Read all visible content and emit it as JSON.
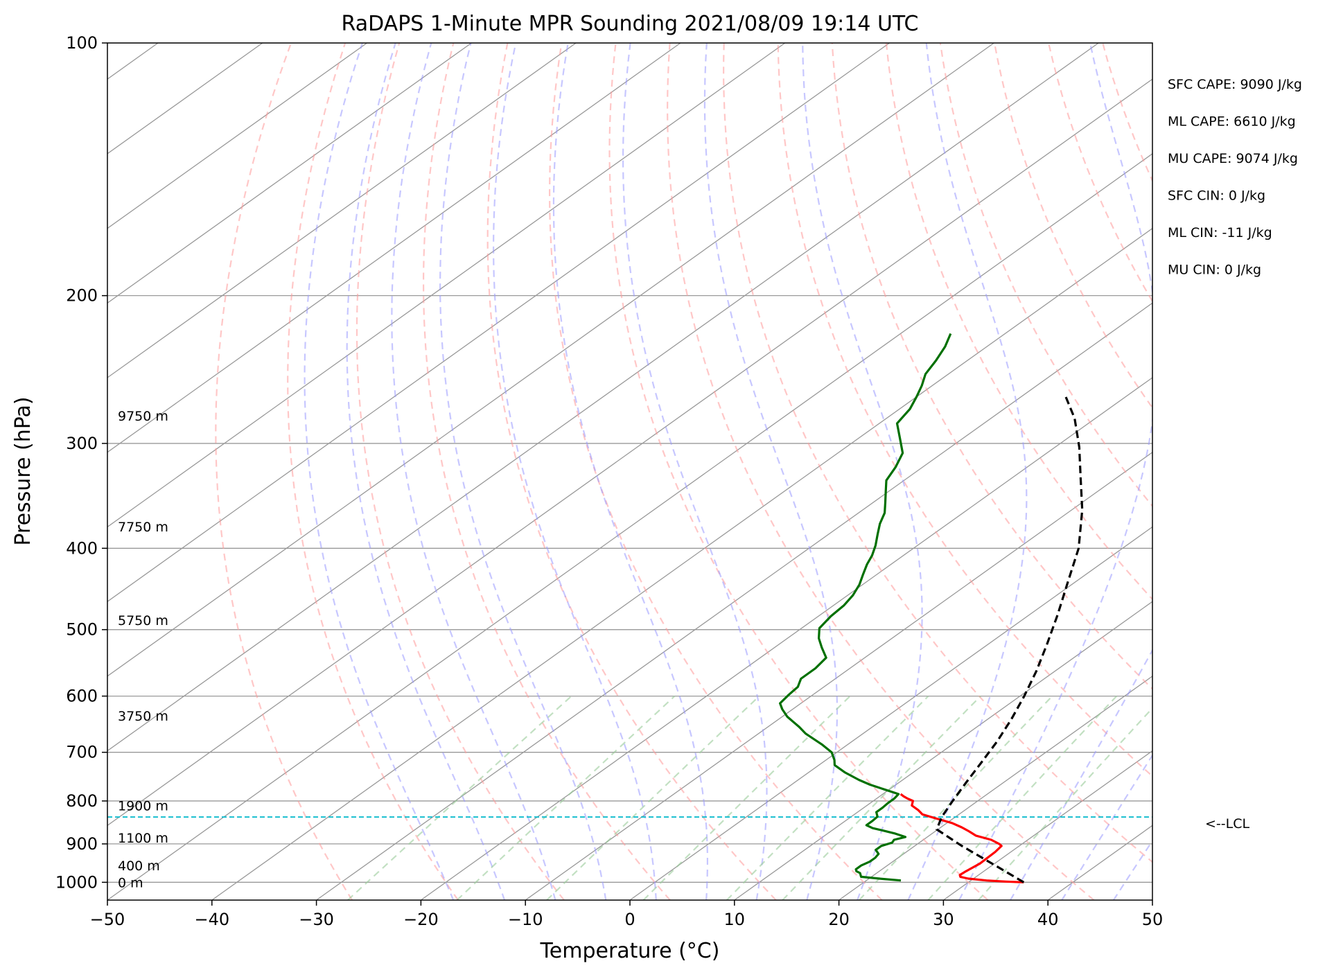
{
  "chart_data": {
    "type": "line",
    "diagram": "skew-t log-p",
    "title": "RaDAPS 1-Minute MPR Sounding 2021/08/09 19:14 UTC",
    "xlabel": "Temperature (°C)",
    "ylabel": "Pressure (hPa)",
    "xlim": [
      -50,
      50
    ],
    "ylim": [
      1050,
      100
    ],
    "y_scale": "log",
    "grid": true,
    "x_ticks": [
      -50,
      -40,
      -30,
      -20,
      -10,
      0,
      10,
      20,
      30,
      40,
      50
    ],
    "x_tick_labels": [
      "−50",
      "−40",
      "−30",
      "−20",
      "−10",
      "0",
      "10",
      "20",
      "30",
      "40",
      "50"
    ],
    "y_ticks": [
      1000,
      900,
      800,
      700,
      600,
      500,
      400,
      300,
      200,
      100
    ],
    "y_tick_labels": [
      "1000",
      "900",
      "800",
      "700",
      "600",
      "500",
      "400",
      "300",
      "200",
      "100"
    ],
    "colors": {
      "temperature": "#ff0000",
      "dewpoint": "#007000",
      "parcel": "#000000",
      "lcl": "#17becf",
      "isotherm": "#999999",
      "dry_adiabat": "#ff9999",
      "moist_adiabat": "#9999ff",
      "mixing_ratio": "#99cc99"
    },
    "series": [
      {
        "key": "temperature",
        "points": [
          [
            35.3,
            1000
          ],
          [
            33.5,
            998
          ],
          [
            31.5,
            995
          ],
          [
            29.5,
            990
          ],
          [
            28.5,
            985
          ],
          [
            28.2,
            980
          ],
          [
            28.3,
            970
          ],
          [
            28.6,
            950
          ],
          [
            28.5,
            920
          ],
          [
            28.3,
            905
          ],
          [
            27.8,
            900
          ],
          [
            26.5,
            890
          ],
          [
            24.5,
            880
          ],
          [
            23.3,
            870
          ],
          [
            22.0,
            860
          ],
          [
            20.5,
            850
          ],
          [
            18.5,
            840
          ],
          [
            16.5,
            830
          ],
          [
            15.5,
            820
          ],
          [
            14.3,
            810
          ],
          [
            13.8,
            800
          ],
          [
            13.0,
            795
          ],
          [
            12.3,
            790
          ],
          [
            11.7,
            785
          ]
        ]
      },
      {
        "key": "dewpoint",
        "points": [
          [
            23.3,
            995
          ],
          [
            21.0,
            990
          ],
          [
            19.0,
            985
          ],
          [
            18.4,
            975
          ],
          [
            17.8,
            970
          ],
          [
            17.5,
            965
          ],
          [
            17.5,
            955
          ],
          [
            17.8,
            945
          ],
          [
            17.8,
            935
          ],
          [
            17.6,
            925
          ],
          [
            16.8,
            915
          ],
          [
            16.8,
            905
          ],
          [
            17.4,
            897
          ],
          [
            17.2,
            890
          ],
          [
            17.9,
            883
          ],
          [
            16.5,
            875
          ],
          [
            15.0,
            868
          ],
          [
            13.6,
            862
          ],
          [
            12.6,
            855
          ],
          [
            12.6,
            845
          ],
          [
            12.5,
            835
          ],
          [
            11.8,
            825
          ],
          [
            11.8,
            815
          ],
          [
            11.7,
            805
          ],
          [
            11.7,
            795
          ],
          [
            11.5,
            785
          ],
          [
            9.5,
            775
          ],
          [
            7.5,
            765
          ],
          [
            5.8,
            755
          ],
          [
            3.5,
            740
          ],
          [
            1.5,
            725
          ],
          [
            0.8,
            715
          ],
          [
            -0.5,
            700
          ],
          [
            -2.5,
            685
          ],
          [
            -5.5,
            665
          ],
          [
            -7.0,
            653
          ],
          [
            -9.5,
            635
          ],
          [
            -11.0,
            622
          ],
          [
            -12.0,
            612
          ],
          [
            -12.3,
            598
          ],
          [
            -12.5,
            585
          ],
          [
            -13.3,
            572
          ],
          [
            -13.3,
            556
          ],
          [
            -13.7,
            540
          ],
          [
            -15.5,
            525
          ],
          [
            -17.0,
            512
          ],
          [
            -18.3,
            498
          ],
          [
            -18.8,
            482
          ],
          [
            -19.0,
            468
          ],
          [
            -19.5,
            455
          ],
          [
            -20.3,
            442
          ],
          [
            -21.3,
            430
          ],
          [
            -22.3,
            418
          ],
          [
            -23.0,
            408
          ],
          [
            -24.0,
            397
          ],
          [
            -25.3,
            385
          ],
          [
            -26.5,
            374
          ],
          [
            -27.5,
            363
          ],
          [
            -28.8,
            353
          ],
          [
            -30.3,
            342
          ],
          [
            -31.7,
            332
          ],
          [
            -32.6,
            320
          ],
          [
            -33.8,
            308
          ],
          [
            -36.0,
            296
          ],
          [
            -38.3,
            284
          ],
          [
            -39.0,
            273
          ],
          [
            -40.0,
            264
          ],
          [
            -41.0,
            256
          ],
          [
            -42.2,
            248
          ],
          [
            -43.0,
            239
          ],
          [
            -44.0,
            230
          ],
          [
            -45.2,
            222
          ]
        ]
      },
      {
        "key": "parcel",
        "points": [
          [
            35.3,
            1000
          ],
          [
            30.0,
            952
          ],
          [
            24.5,
            905
          ],
          [
            19.9,
            865
          ],
          [
            18.7,
            836
          ],
          [
            17.6,
            800
          ],
          [
            16.4,
            760
          ],
          [
            15.2,
            720
          ],
          [
            13.9,
            680
          ],
          [
            12.3,
            640
          ],
          [
            10.4,
            600
          ],
          [
            8.2,
            560
          ],
          [
            5.6,
            520
          ],
          [
            2.7,
            480
          ],
          [
            -0.6,
            440
          ],
          [
            -4.2,
            400
          ],
          [
            -9.0,
            360
          ],
          [
            -13.4,
            330
          ],
          [
            -17.7,
            303
          ],
          [
            -22.0,
            280
          ],
          [
            -26.2,
            262
          ]
        ]
      }
    ],
    "lcl": {
      "pressure": 836,
      "label": "<--LCL"
    },
    "height_labels": [
      {
        "text": "0 m",
        "pressure": 1000
      },
      {
        "text": "400 m",
        "pressure": 955
      },
      {
        "text": "1100 m",
        "pressure": 885
      },
      {
        "text": "1900 m",
        "pressure": 810
      },
      {
        "text": "3750 m",
        "pressure": 633
      },
      {
        "text": "5750 m",
        "pressure": 487
      },
      {
        "text": "7750 m",
        "pressure": 377
      },
      {
        "text": "9750 m",
        "pressure": 278
      }
    ],
    "annotations": [
      "SFC CAPE: 9090 J/kg",
      "ML CAPE: 6610 J/kg",
      "MU CAPE: 9074 J/kg",
      "SFC CIN: 0 J/kg",
      "ML CIN: -11 J/kg",
      "MU CIN: 0 J/kg"
    ]
  }
}
